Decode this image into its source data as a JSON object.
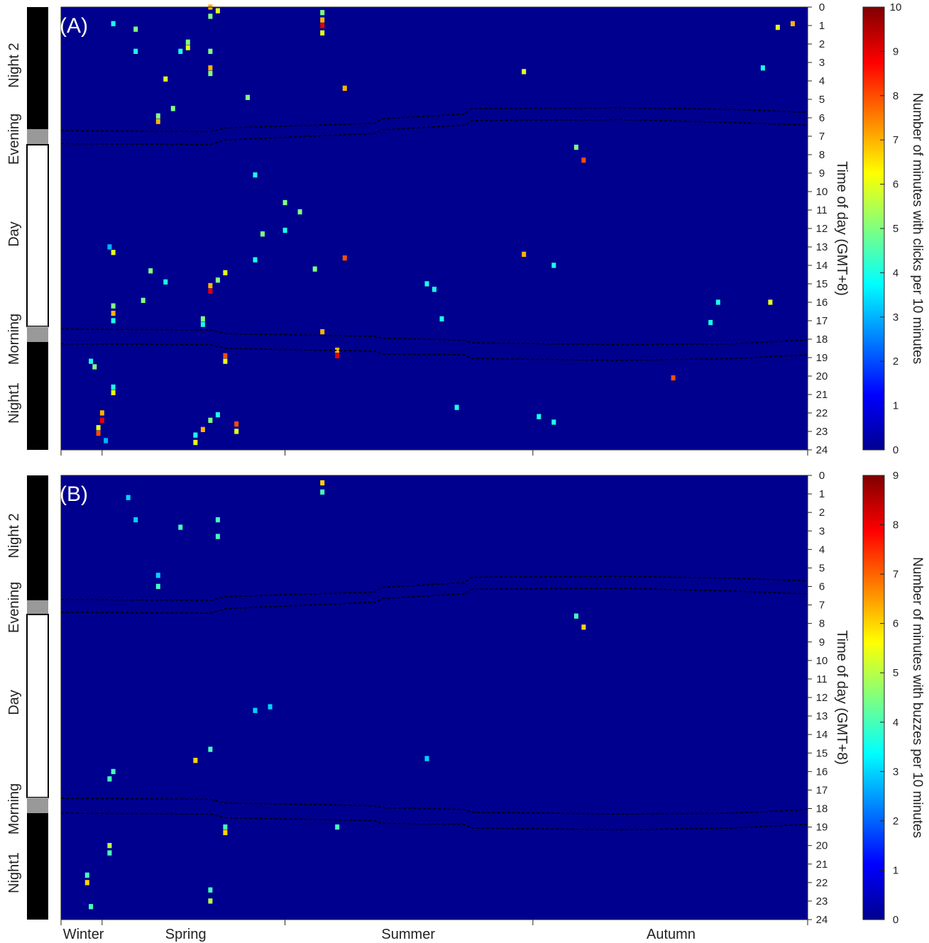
{
  "chart_data": [
    {
      "type": "heatmap",
      "panel_label": "(A)",
      "ylabel": "Time of day (GMT+8)",
      "y_ticks": [
        0,
        1,
        2,
        3,
        4,
        5,
        6,
        7,
        8,
        9,
        10,
        11,
        12,
        13,
        14,
        15,
        16,
        17,
        18,
        19,
        20,
        21,
        22,
        23,
        24
      ],
      "ylim": [
        0,
        24
      ],
      "x_season_labels": [
        "",
        "",
        "",
        ""
      ],
      "colorbar": {
        "label": "Number of minutes with clicks per 10 minutes",
        "range": [
          0,
          10
        ],
        "ticks": [
          0,
          1,
          2,
          3,
          4,
          5,
          6,
          7,
          8,
          9,
          10
        ]
      },
      "background_value": 0,
      "period_bar": [
        "Night 2",
        "Evening",
        "Day",
        "Morning",
        "Night1"
      ],
      "twilight_lines_hours": [
        [
          [
            0,
            6.7
          ],
          [
            0.2,
            6.75
          ],
          [
            0.22,
            6.55
          ],
          [
            0.42,
            6.3
          ],
          [
            0.43,
            6.05
          ],
          [
            0.54,
            5.8
          ],
          [
            0.55,
            5.5
          ],
          [
            0.75,
            5.45
          ],
          [
            0.9,
            5.55
          ],
          [
            1,
            5.7
          ]
        ],
        [
          [
            0,
            7.4
          ],
          [
            0.2,
            7.45
          ],
          [
            0.22,
            7.2
          ],
          [
            0.42,
            6.85
          ],
          [
            0.43,
            6.65
          ],
          [
            0.54,
            6.4
          ],
          [
            0.55,
            6.15
          ],
          [
            0.75,
            6.1
          ],
          [
            0.9,
            6.25
          ],
          [
            1,
            6.4
          ]
        ],
        [
          [
            0,
            17.45
          ],
          [
            0.2,
            17.5
          ],
          [
            0.22,
            17.7
          ],
          [
            0.42,
            17.85
          ],
          [
            0.43,
            17.95
          ],
          [
            0.54,
            18.05
          ],
          [
            0.55,
            18.2
          ],
          [
            0.75,
            18.3
          ],
          [
            0.9,
            18.25
          ],
          [
            1,
            18.05
          ]
        ],
        [
          [
            0,
            18.25
          ],
          [
            0.2,
            18.3
          ],
          [
            0.22,
            18.5
          ],
          [
            0.42,
            18.65
          ],
          [
            0.43,
            18.8
          ],
          [
            0.54,
            18.85
          ],
          [
            0.55,
            19.05
          ],
          [
            0.75,
            19.15
          ],
          [
            0.9,
            19.05
          ],
          [
            1,
            18.85
          ]
        ]
      ],
      "cells": [
        [
          0.05,
          23.1,
          8
        ],
        [
          0.05,
          22.8,
          6
        ],
        [
          0.055,
          22.4,
          9
        ],
        [
          0.055,
          22.0,
          7
        ],
        [
          0.06,
          23.5,
          3
        ],
        [
          0.045,
          19.5,
          5
        ],
        [
          0.04,
          19.2,
          4
        ],
        [
          0.07,
          17.0,
          4
        ],
        [
          0.07,
          16.6,
          7
        ],
        [
          0.07,
          16.2,
          5
        ],
        [
          0.07,
          20.9,
          6
        ],
        [
          0.07,
          20.6,
          4
        ],
        [
          0.07,
          13.3,
          6
        ],
        [
          0.065,
          13.0,
          3
        ],
        [
          0.18,
          23.6,
          6
        ],
        [
          0.18,
          23.2,
          4
        ],
        [
          0.19,
          22.9,
          7
        ],
        [
          0.2,
          22.4,
          5
        ],
        [
          0.21,
          22.1,
          4
        ],
        [
          0.22,
          18.9,
          8
        ],
        [
          0.22,
          19.2,
          6
        ],
        [
          0.235,
          22.6,
          8
        ],
        [
          0.235,
          23.0,
          6
        ],
        [
          0.21,
          0.2,
          6
        ],
        [
          0.2,
          0.5,
          5
        ],
        [
          0.2,
          0.0,
          7
        ],
        [
          0.2,
          2.4,
          5
        ],
        [
          0.2,
          3.3,
          7
        ],
        [
          0.2,
          3.6,
          5
        ],
        [
          0.17,
          2.2,
          6
        ],
        [
          0.17,
          1.9,
          5
        ],
        [
          0.16,
          2.4,
          4
        ],
        [
          0.13,
          6.2,
          7
        ],
        [
          0.13,
          5.9,
          5
        ],
        [
          0.1,
          1.2,
          5
        ],
        [
          0.1,
          2.4,
          4
        ],
        [
          0.35,
          1.0,
          9
        ],
        [
          0.35,
          0.7,
          7
        ],
        [
          0.35,
          1.4,
          6
        ],
        [
          0.35,
          0.3,
          5
        ],
        [
          0.35,
          17.6,
          7
        ],
        [
          0.37,
          18.9,
          9
        ],
        [
          0.37,
          18.6,
          7
        ],
        [
          0.2,
          15.4,
          9
        ],
        [
          0.2,
          15.1,
          7
        ],
        [
          0.21,
          14.8,
          5
        ],
        [
          0.22,
          14.4,
          6
        ],
        [
          0.19,
          16.9,
          5
        ],
        [
          0.19,
          17.2,
          4
        ],
        [
          0.26,
          13.7,
          4
        ],
        [
          0.27,
          12.3,
          5
        ],
        [
          0.38,
          13.6,
          8
        ],
        [
          0.49,
          15.0,
          4
        ],
        [
          0.5,
          15.3,
          4
        ],
        [
          0.51,
          16.9,
          4
        ],
        [
          0.62,
          13.4,
          7
        ],
        [
          0.66,
          14.0,
          4
        ],
        [
          0.62,
          3.5,
          6
        ],
        [
          0.69,
          7.6,
          5
        ],
        [
          0.7,
          8.3,
          8
        ],
        [
          0.88,
          16.0,
          4
        ],
        [
          0.87,
          17.1,
          4
        ],
        [
          0.82,
          20.1,
          8
        ],
        [
          0.95,
          16.0,
          6
        ],
        [
          0.98,
          0.9,
          7
        ],
        [
          0.96,
          1.1,
          6
        ],
        [
          0.94,
          3.3,
          4
        ],
        [
          0.38,
          4.4,
          7
        ],
        [
          0.14,
          3.9,
          6
        ],
        [
          0.53,
          21.7,
          4
        ],
        [
          0.64,
          22.2,
          4
        ],
        [
          0.66,
          22.5,
          4
        ],
        [
          0.25,
          4.9,
          5
        ],
        [
          0.07,
          0.9,
          4
        ],
        [
          0.26,
          9.1,
          4
        ],
        [
          0.3,
          10.6,
          5
        ],
        [
          0.15,
          5.5,
          5
        ],
        [
          0.12,
          14.3,
          5
        ],
        [
          0.14,
          14.9,
          4
        ],
        [
          0.11,
          15.9,
          5
        ],
        [
          0.32,
          11.1,
          5
        ],
        [
          0.3,
          12.1,
          4
        ],
        [
          0.34,
          14.2,
          5
        ]
      ]
    },
    {
      "type": "heatmap",
      "panel_label": "(B)",
      "ylabel": "Time of day (GMT+8)",
      "y_ticks": [
        0,
        1,
        2,
        3,
        4,
        5,
        6,
        7,
        8,
        9,
        10,
        11,
        12,
        13,
        14,
        15,
        16,
        17,
        18,
        19,
        20,
        21,
        22,
        23,
        24
      ],
      "ylim": [
        0,
        24
      ],
      "x_season_labels": [
        "Winter",
        "Spring",
        "Summer",
        "Autumn"
      ],
      "colorbar": {
        "label": "Number of minutes with buzzes per 10 minutes",
        "range": [
          0,
          9
        ],
        "ticks": [
          0,
          1,
          2,
          3,
          4,
          5,
          6,
          7,
          8,
          9
        ]
      },
      "background_value": 0,
      "period_bar": [
        "Night 2",
        "Evening",
        "Day",
        "Morning",
        "Night1"
      ],
      "twilight_lines_hours": [
        [
          [
            0,
            6.7
          ],
          [
            0.2,
            6.75
          ],
          [
            0.22,
            6.55
          ],
          [
            0.42,
            6.3
          ],
          [
            0.43,
            6.05
          ],
          [
            0.54,
            5.8
          ],
          [
            0.55,
            5.5
          ],
          [
            0.75,
            5.45
          ],
          [
            0.9,
            5.55
          ],
          [
            1,
            5.7
          ]
        ],
        [
          [
            0,
            7.4
          ],
          [
            0.2,
            7.45
          ],
          [
            0.22,
            7.2
          ],
          [
            0.42,
            6.85
          ],
          [
            0.43,
            6.65
          ],
          [
            0.54,
            6.4
          ],
          [
            0.55,
            6.15
          ],
          [
            0.75,
            6.1
          ],
          [
            0.9,
            6.25
          ],
          [
            1,
            6.4
          ]
        ],
        [
          [
            0,
            17.45
          ],
          [
            0.2,
            17.5
          ],
          [
            0.22,
            17.7
          ],
          [
            0.42,
            17.85
          ],
          [
            0.43,
            17.95
          ],
          [
            0.54,
            18.05
          ],
          [
            0.55,
            18.2
          ],
          [
            0.75,
            18.3
          ],
          [
            0.9,
            18.25
          ],
          [
            1,
            18.05
          ]
        ],
        [
          [
            0,
            18.25
          ],
          [
            0.2,
            18.3
          ],
          [
            0.22,
            18.5
          ],
          [
            0.42,
            18.65
          ],
          [
            0.43,
            18.8
          ],
          [
            0.54,
            18.85
          ],
          [
            0.55,
            19.05
          ],
          [
            0.75,
            19.15
          ],
          [
            0.9,
            19.05
          ],
          [
            1,
            18.85
          ]
        ]
      ],
      "cells": [
        [
          0.035,
          22.0,
          6
        ],
        [
          0.035,
          21.6,
          4
        ],
        [
          0.04,
          23.3,
          4
        ],
        [
          0.065,
          20.4,
          4
        ],
        [
          0.065,
          20.0,
          5
        ],
        [
          0.065,
          16.4,
          4
        ],
        [
          0.2,
          22.4,
          4
        ],
        [
          0.2,
          23.0,
          5
        ],
        [
          0.22,
          19.3,
          6
        ],
        [
          0.22,
          19.0,
          4
        ],
        [
          0.21,
          3.3,
          4
        ],
        [
          0.21,
          2.4,
          4
        ],
        [
          0.16,
          2.8,
          4
        ],
        [
          0.13,
          5.4,
          3
        ],
        [
          0.13,
          6.0,
          4
        ],
        [
          0.35,
          0.4,
          6
        ],
        [
          0.35,
          0.9,
          4
        ],
        [
          0.37,
          19.0,
          4
        ],
        [
          0.18,
          15.4,
          6
        ],
        [
          0.2,
          14.8,
          4
        ],
        [
          0.69,
          7.6,
          4
        ],
        [
          0.7,
          8.2,
          6
        ],
        [
          0.49,
          15.3,
          3
        ],
        [
          0.07,
          16.0,
          4
        ],
        [
          0.1,
          2.4,
          3
        ],
        [
          0.09,
          1.2,
          3
        ],
        [
          0.26,
          12.7,
          3
        ],
        [
          0.28,
          12.5,
          3
        ]
      ]
    }
  ]
}
